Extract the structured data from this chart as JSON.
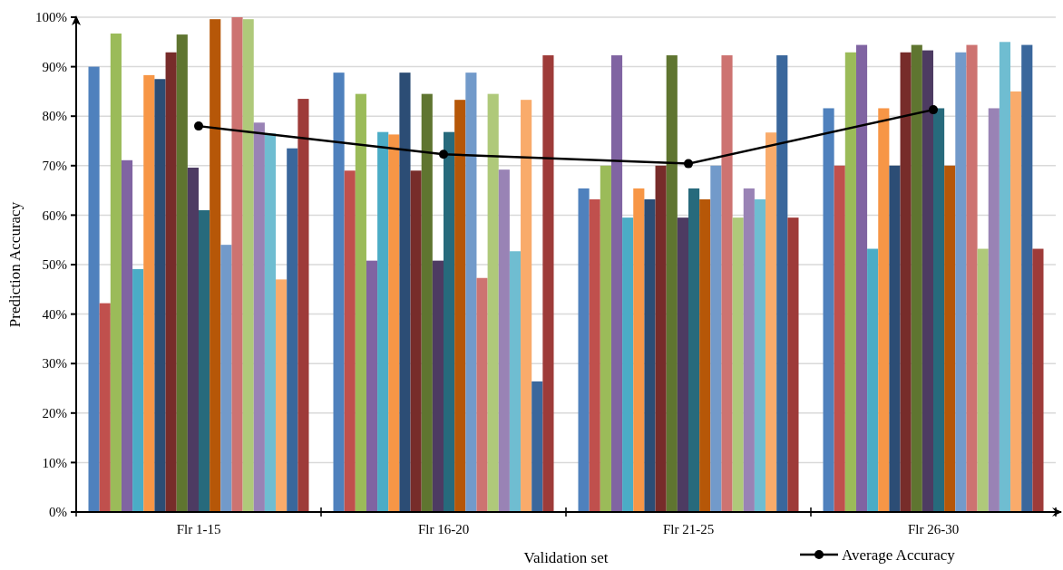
{
  "chart_data": {
    "type": "bar",
    "xlabel": "Validation set",
    "ylabel": "Prediction Accuracy",
    "categories": [
      "Flr 1-15",
      "Flr 16-20",
      "Flr 21-25",
      "Flr 26-30"
    ],
    "ylim": [
      0,
      100
    ],
    "yticks": [
      {
        "value": 0,
        "label": "0%"
      },
      {
        "value": 10,
        "label": "10%"
      },
      {
        "value": 20,
        "label": "20%"
      },
      {
        "value": 30,
        "label": "30%"
      },
      {
        "value": 40,
        "label": "40%"
      },
      {
        "value": 50,
        "label": "50%"
      },
      {
        "value": 60,
        "label": "60%"
      },
      {
        "value": 70,
        "label": "70%"
      },
      {
        "value": 80,
        "label": "80%"
      },
      {
        "value": 90,
        "label": "90%"
      },
      {
        "value": 100,
        "label": "100%"
      }
    ],
    "grid": "y",
    "legend": "bottom right",
    "series": [
      {
        "color": "#4f81bd",
        "values": [
          90,
          88.8,
          65.4,
          81.6
        ]
      },
      {
        "color": "#c0504d",
        "values": [
          42.2,
          69,
          63.2,
          70
        ]
      },
      {
        "color": "#9bbb59",
        "values": [
          96.7,
          84.5,
          70,
          92.9
        ]
      },
      {
        "color": "#8064a2",
        "values": [
          71.1,
          50.8,
          92.3,
          94.4
        ]
      },
      {
        "color": "#4bacc6",
        "values": [
          49.1,
          76.8,
          59.5,
          53.2
        ]
      },
      {
        "color": "#f79646",
        "values": [
          88.3,
          76.3,
          65.4,
          81.6
        ]
      },
      {
        "color": "#2c4d75",
        "values": [
          87.5,
          88.8,
          63.2,
          70
        ]
      },
      {
        "color": "#772c2a",
        "values": [
          92.9,
          69,
          70,
          92.9
        ]
      },
      {
        "color": "#5f7530",
        "values": [
          96.5,
          84.5,
          92.3,
          94.4
        ]
      },
      {
        "color": "#4d3b62",
        "values": [
          69.6,
          50.8,
          59.5,
          93.3
        ]
      },
      {
        "color": "#276a7c",
        "values": [
          61,
          76.8,
          65.4,
          81.6
        ]
      },
      {
        "color": "#b65708",
        "values": [
          99.6,
          83.3,
          63.2,
          70
        ]
      },
      {
        "color": "#729aca",
        "values": [
          54,
          88.8,
          70,
          92.9
        ]
      },
      {
        "color": "#cd7371",
        "values": [
          100,
          47.3,
          92.3,
          94.4
        ]
      },
      {
        "color": "#afc97a",
        "values": [
          99.6,
          84.5,
          59.5,
          53.2
        ]
      },
      {
        "color": "#9983b5",
        "values": [
          78.7,
          69.2,
          65.4,
          81.6
        ]
      },
      {
        "color": "#6fbdd1",
        "values": [
          76.5,
          52.7,
          63.2,
          95
        ]
      },
      {
        "color": "#f9ab6b",
        "values": [
          47,
          83.3,
          76.7,
          85
        ]
      },
      {
        "color": "#3a679c",
        "values": [
          73.5,
          26.4,
          92.3,
          94.4
        ]
      },
      {
        "color": "#9e3b39",
        "values": [
          83.5,
          92.3,
          59.5,
          53.2
        ]
      },
      {
        "type": "line",
        "name": "Average Accuracy",
        "color": "#000000",
        "marker": "circle",
        "values": [
          78,
          72.3,
          70.4,
          81.3
        ]
      }
    ]
  }
}
